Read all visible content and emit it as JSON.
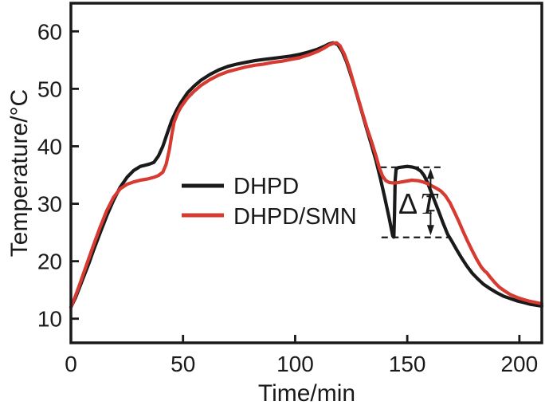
{
  "figure": {
    "background": "#ffffff",
    "axis_color": "#1a1a1a"
  },
  "chart_data": {
    "type": "line",
    "title": "",
    "xlabel": "Time/min",
    "ylabel": "Temperature/°C",
    "xlim": [
      0,
      210
    ],
    "ylim": [
      5.8,
      64.9
    ],
    "xticks": [
      0,
      50,
      100,
      150,
      200
    ],
    "yticks": [
      10,
      20,
      30,
      40,
      50,
      60
    ],
    "grid": false,
    "legend_position": "inside-center-left",
    "series": [
      {
        "name": "DHPD",
        "color": "#1a1a1a",
        "points": [
          [
            0,
            12
          ],
          [
            2,
            13.6
          ],
          [
            4,
            15.6
          ],
          [
            6,
            17.6
          ],
          [
            8,
            19.6
          ],
          [
            10,
            21.8
          ],
          [
            13,
            24.9
          ],
          [
            16,
            27.9
          ],
          [
            19,
            30.6
          ],
          [
            22,
            32.9
          ],
          [
            25,
            34.6
          ],
          [
            28,
            35.8
          ],
          [
            31,
            36.5
          ],
          [
            33,
            36.7
          ],
          [
            35,
            36.9
          ],
          [
            37,
            37.2
          ],
          [
            39,
            38.3
          ],
          [
            41,
            40
          ],
          [
            43,
            42.3
          ],
          [
            45,
            44.5
          ],
          [
            47,
            46.2
          ],
          [
            49,
            47.6
          ],
          [
            52,
            49.3
          ],
          [
            55,
            50.5
          ],
          [
            58,
            51.5
          ],
          [
            62,
            52.5
          ],
          [
            66,
            53.3
          ],
          [
            70,
            53.9
          ],
          [
            74,
            54.3
          ],
          [
            78,
            54.6
          ],
          [
            82,
            54.9
          ],
          [
            86,
            55.1
          ],
          [
            90,
            55.3
          ],
          [
            94,
            55.5
          ],
          [
            98,
            55.7
          ],
          [
            102,
            56
          ],
          [
            106,
            56.4
          ],
          [
            110,
            56.9
          ],
          [
            113,
            57.4
          ],
          [
            115,
            57.8
          ],
          [
            117,
            58
          ],
          [
            119,
            57.7
          ],
          [
            121,
            56.5
          ],
          [
            123,
            54.6
          ],
          [
            126,
            51
          ],
          [
            129,
            47
          ],
          [
            132,
            42.9
          ],
          [
            134,
            40.3
          ],
          [
            136,
            37.6
          ],
          [
            138,
            34.4
          ],
          [
            140,
            31
          ],
          [
            142,
            27.4
          ],
          [
            143.5,
            24.4
          ],
          [
            144,
            24.2
          ],
          [
            144.3,
            28
          ],
          [
            144.6,
            34
          ],
          [
            145,
            36
          ],
          [
            146,
            36.3
          ],
          [
            148,
            36.4
          ],
          [
            150,
            36.5
          ],
          [
            152,
            36.4
          ],
          [
            154,
            36.2
          ],
          [
            156,
            35.7
          ],
          [
            157.5,
            34.9
          ],
          [
            159,
            33.7
          ],
          [
            160.5,
            32.2
          ],
          [
            162,
            30.7
          ],
          [
            164,
            28.7
          ],
          [
            166,
            26.6
          ],
          [
            168,
            24.7
          ],
          [
            170,
            23.4
          ],
          [
            172,
            22
          ],
          [
            174,
            20.7
          ],
          [
            176.5,
            19.2
          ],
          [
            179,
            17.9
          ],
          [
            181.5,
            16.9
          ],
          [
            184,
            16
          ],
          [
            187,
            15.2
          ],
          [
            190,
            14.5
          ],
          [
            193,
            13.9
          ],
          [
            196,
            13.5
          ],
          [
            199,
            13.1
          ],
          [
            202,
            12.8
          ],
          [
            205,
            12.5
          ],
          [
            208,
            12.3
          ],
          [
            210,
            12.2
          ]
        ]
      },
      {
        "name": "DHPD/SMN",
        "color": "#d63a31",
        "points": [
          [
            0,
            12
          ],
          [
            2,
            13.9
          ],
          [
            4,
            16.1
          ],
          [
            6,
            18.3
          ],
          [
            8,
            20.5
          ],
          [
            10,
            22.7
          ],
          [
            13,
            25.9
          ],
          [
            16,
            28.8
          ],
          [
            19,
            31.1
          ],
          [
            22,
            32.6
          ],
          [
            25,
            33.4
          ],
          [
            28,
            33.8
          ],
          [
            31,
            34.1
          ],
          [
            34,
            34.3
          ],
          [
            37,
            34.6
          ],
          [
            39,
            34.9
          ],
          [
            41,
            35.5
          ],
          [
            42.5,
            36.9
          ],
          [
            44,
            39.6
          ],
          [
            45,
            42
          ],
          [
            46,
            44.2
          ],
          [
            47.5,
            45.7
          ],
          [
            49,
            46.8
          ],
          [
            52,
            48.4
          ],
          [
            55,
            49.6
          ],
          [
            58,
            50.6
          ],
          [
            62,
            51.6
          ],
          [
            66,
            52.4
          ],
          [
            70,
            53
          ],
          [
            74,
            53.4
          ],
          [
            78,
            53.8
          ],
          [
            82,
            54.1
          ],
          [
            86,
            54.3
          ],
          [
            90,
            54.6
          ],
          [
            94,
            54.8
          ],
          [
            98,
            55.1
          ],
          [
            102,
            55.4
          ],
          [
            106,
            55.9
          ],
          [
            110,
            56.5
          ],
          [
            113,
            57.1
          ],
          [
            115,
            57.6
          ],
          [
            117,
            57.9
          ],
          [
            118.5,
            58
          ],
          [
            120,
            57.5
          ],
          [
            122,
            56
          ],
          [
            124,
            53.8
          ],
          [
            127,
            49.8
          ],
          [
            130,
            45.8
          ],
          [
            132,
            43.2
          ],
          [
            134,
            40.9
          ],
          [
            136,
            38.4
          ],
          [
            137.5,
            36.3
          ],
          [
            139,
            34.8
          ],
          [
            140.5,
            34
          ],
          [
            142,
            33.7
          ],
          [
            144,
            33.6
          ],
          [
            146,
            33.7
          ],
          [
            149,
            33.9
          ],
          [
            152,
            34.1
          ],
          [
            155,
            34
          ],
          [
            157,
            33.8
          ],
          [
            159,
            33.5
          ],
          [
            161,
            33.1
          ],
          [
            163,
            32.7
          ],
          [
            165,
            32.2
          ],
          [
            167,
            31.4
          ],
          [
            169,
            30.2
          ],
          [
            171,
            28.6
          ],
          [
            173,
            26.9
          ],
          [
            175,
            25.1
          ],
          [
            177,
            23.4
          ],
          [
            179,
            21.8
          ],
          [
            181,
            20.3
          ],
          [
            183,
            19
          ],
          [
            184.5,
            18.3
          ],
          [
            185.5,
            18
          ],
          [
            187,
            17.2
          ],
          [
            189,
            16.3
          ],
          [
            191,
            15.5
          ],
          [
            193.5,
            14.8
          ],
          [
            196,
            14.2
          ],
          [
            199,
            13.7
          ],
          [
            202,
            13.3
          ],
          [
            205,
            13
          ],
          [
            207.5,
            12.8
          ],
          [
            210,
            12.6
          ]
        ]
      }
    ],
    "annotation": {
      "label": "ΔT",
      "top_dashed_line": {
        "temp": 36.35,
        "t_start": 138,
        "t_end": 166.5
      },
      "bottom_dashed_line": {
        "temp": 24.15,
        "t_start": 138.5,
        "t_end": 169.5
      },
      "arrow_t": 160.4,
      "up_arrow": {
        "from_temp": 31.3,
        "to_temp": 36.15
      },
      "down_arrow": {
        "from_temp": 28.8,
        "to_temp": 24.5
      }
    }
  }
}
